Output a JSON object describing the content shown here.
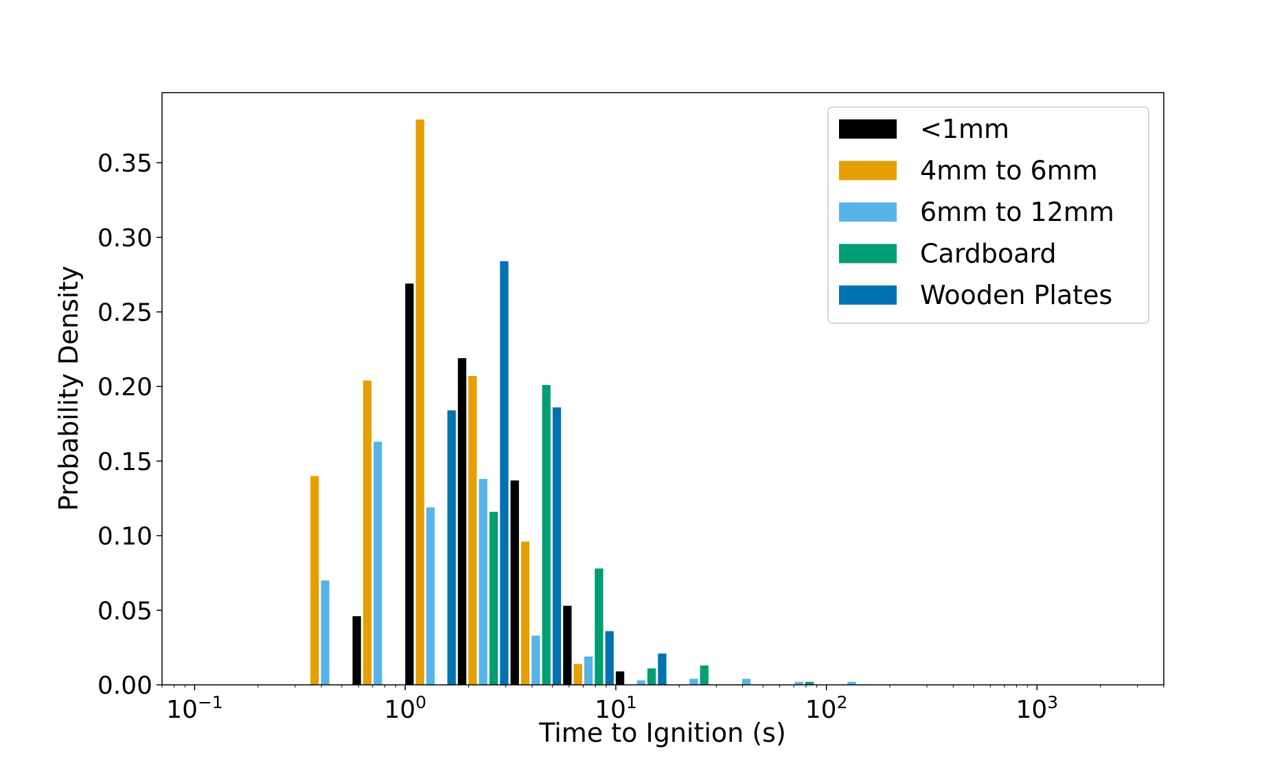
{
  "chart_data": {
    "type": "bar",
    "xlabel": "Time to Ignition (s)",
    "ylabel": "Probability Density",
    "xscale": "log",
    "xlim": [
      0.07,
      4000
    ],
    "ylim": [
      0,
      0.397
    ],
    "yticks": [
      "0.00",
      "0.05",
      "0.10",
      "0.15",
      "0.20",
      "0.25",
      "0.30",
      "0.35"
    ],
    "xticks": [
      {
        "base": "10",
        "exp": "−1",
        "value": 0.1
      },
      {
        "base": "10",
        "exp": "0",
        "value": 1
      },
      {
        "base": "10",
        "exp": "1",
        "value": 10
      },
      {
        "base": "10",
        "exp": "2",
        "value": 100
      },
      {
        "base": "10",
        "exp": "3",
        "value": 1000
      }
    ],
    "legend_position": "top-right",
    "grid": false,
    "bins": [
      0.316,
      0.562,
      1.0,
      1.778,
      3.162,
      5.623,
      10.0,
      17.78,
      31.62,
      56.23,
      100.0,
      177.8,
      316.2,
      562.3,
      1000,
      1778,
      3162
    ],
    "series": [
      {
        "name": "<1mm",
        "color": "#000000",
        "values": [
          0,
          0.046,
          0.269,
          0.219,
          0.137,
          0.053,
          0.009,
          0,
          0,
          0,
          0,
          0,
          0,
          0,
          0,
          0,
          0
        ]
      },
      {
        "name": "4mm to 6mm",
        "color": "#E69F00",
        "values": [
          0.14,
          0.204,
          0.379,
          0.207,
          0.096,
          0.014,
          0,
          0,
          0,
          0,
          0,
          0,
          0,
          0,
          0,
          0,
          0
        ]
      },
      {
        "name": "6mm to 12mm",
        "color": "#56B4E9",
        "values": [
          0.07,
          0.163,
          0.119,
          0.138,
          0.033,
          0.019,
          0.003,
          0.004,
          0.004,
          0.002,
          0.002,
          0,
          0,
          0,
          0,
          0,
          0
        ]
      },
      {
        "name": "Cardboard",
        "color": "#009E73",
        "values": [
          0,
          0,
          0,
          0.116,
          0.201,
          0.078,
          0.011,
          0.013,
          0,
          0.002,
          0,
          0,
          0,
          0,
          0,
          0,
          0
        ]
      },
      {
        "name": "Wooden Plates",
        "color": "#0072B2",
        "values": [
          0,
          0,
          0.184,
          0.284,
          0.186,
          0.036,
          0.021,
          0,
          0,
          0,
          0,
          0,
          0,
          0,
          0,
          0,
          0
        ]
      }
    ]
  }
}
